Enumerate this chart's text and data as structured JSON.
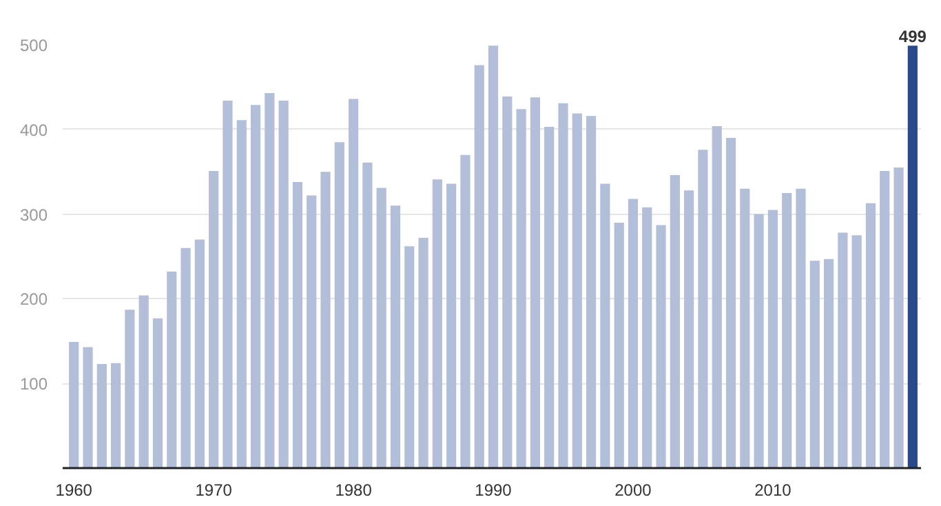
{
  "chart_data": {
    "type": "bar",
    "x": [
      1960,
      1961,
      1962,
      1963,
      1964,
      1965,
      1966,
      1967,
      1968,
      1969,
      1970,
      1971,
      1972,
      1973,
      1974,
      1975,
      1976,
      1977,
      1978,
      1979,
      1980,
      1981,
      1982,
      1983,
      1984,
      1985,
      1986,
      1987,
      1988,
      1989,
      1990,
      1991,
      1992,
      1993,
      1994,
      1995,
      1996,
      1997,
      1998,
      1999,
      2000,
      2001,
      2002,
      2003,
      2004,
      2005,
      2006,
      2007,
      2008,
      2009,
      2010,
      2011,
      2012,
      2013,
      2014,
      2015,
      2016,
      2017,
      2018,
      2019,
      2020
    ],
    "values": [
      149,
      143,
      123,
      124,
      187,
      204,
      177,
      232,
      260,
      270,
      351,
      434,
      411,
      429,
      443,
      434,
      338,
      322,
      350,
      385,
      436,
      361,
      331,
      310,
      262,
      272,
      341,
      336,
      370,
      476,
      499,
      439,
      424,
      438,
      403,
      431,
      419,
      416,
      336,
      290,
      318,
      308,
      287,
      346,
      328,
      376,
      404,
      390,
      330,
      300,
      305,
      325,
      330,
      245,
      247,
      278,
      275,
      313,
      351,
      355,
      499
    ],
    "colors": [
      "#b3bfd8",
      "#b3bfd8",
      "#b3bfd8",
      "#b3bfd8",
      "#b3bfd8",
      "#b3bfd8",
      "#b3bfd8",
      "#b3bfd8",
      "#b3bfd8",
      "#b3bfd8",
      "#b3bfd8",
      "#b3bfd8",
      "#b3bfd8",
      "#b3bfd8",
      "#b3bfd8",
      "#b3bfd8",
      "#b3bfd8",
      "#b3bfd8",
      "#b3bfd8",
      "#b3bfd8",
      "#b3bfd8",
      "#b3bfd8",
      "#b3bfd8",
      "#b3bfd8",
      "#b3bfd8",
      "#b3bfd8",
      "#b3bfd8",
      "#b3bfd8",
      "#b3bfd8",
      "#b3bfd8",
      "#b3bfd8",
      "#b3bfd8",
      "#b3bfd8",
      "#b3bfd8",
      "#b3bfd8",
      "#b3bfd8",
      "#b3bfd8",
      "#b3bfd8",
      "#b3bfd8",
      "#b3bfd8",
      "#b3bfd8",
      "#b3bfd8",
      "#b3bfd8",
      "#b3bfd8",
      "#b3bfd8",
      "#b3bfd8",
      "#b3bfd8",
      "#b3bfd8",
      "#b3bfd8",
      "#b3bfd8",
      "#b3bfd8",
      "#b3bfd8",
      "#b3bfd8",
      "#b3bfd8",
      "#b3bfd8",
      "#b3bfd8",
      "#b3bfd8",
      "#b3bfd8",
      "#b3bfd8",
      "#b3bfd8",
      "#284a8c"
    ],
    "value_labels": [
      null,
      null,
      null,
      null,
      null,
      null,
      null,
      null,
      null,
      null,
      null,
      null,
      null,
      null,
      null,
      null,
      null,
      null,
      null,
      null,
      null,
      null,
      null,
      null,
      null,
      null,
      null,
      null,
      null,
      null,
      null,
      null,
      null,
      null,
      null,
      null,
      null,
      null,
      null,
      null,
      null,
      null,
      null,
      null,
      null,
      null,
      null,
      null,
      null,
      null,
      null,
      null,
      null,
      null,
      null,
      null,
      null,
      null,
      null,
      null,
      "499"
    ],
    "xlim": [
      1959.2,
      2020.6
    ],
    "xticks": [
      1960,
      1970,
      1980,
      1990,
      2000,
      2010
    ],
    "ylim": [
      0,
      500
    ],
    "yticks": [
      100,
      200,
      300,
      400,
      500
    ],
    "grid": "y"
  }
}
